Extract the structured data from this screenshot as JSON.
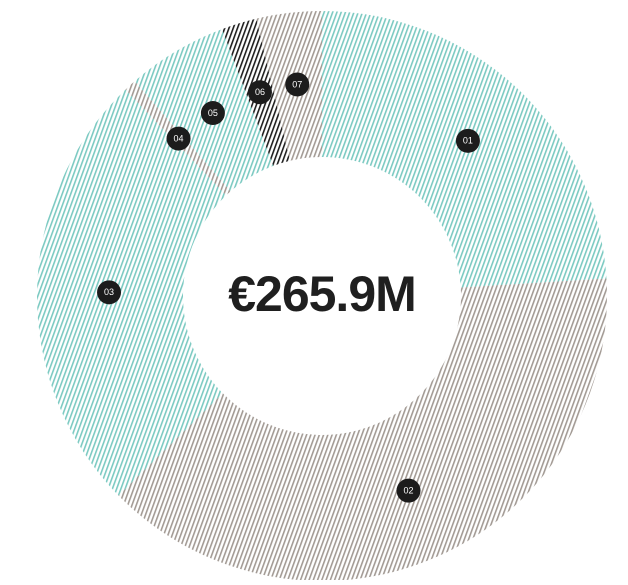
{
  "chart_data": {
    "type": "donut",
    "center_label": "€265.9M",
    "categories": [
      "01",
      "02",
      "03",
      "04",
      "05",
      "06",
      "07"
    ],
    "values": [
      24,
      38.6,
      25.2,
      0.7,
      5.7,
      2,
      3.7
    ],
    "colors": [
      "#7ccac2",
      "#a39b95",
      "#7ccac2",
      "#a39b95",
      "#7ccac2",
      "#1f1f1f",
      "#a39b95"
    ]
  }
}
